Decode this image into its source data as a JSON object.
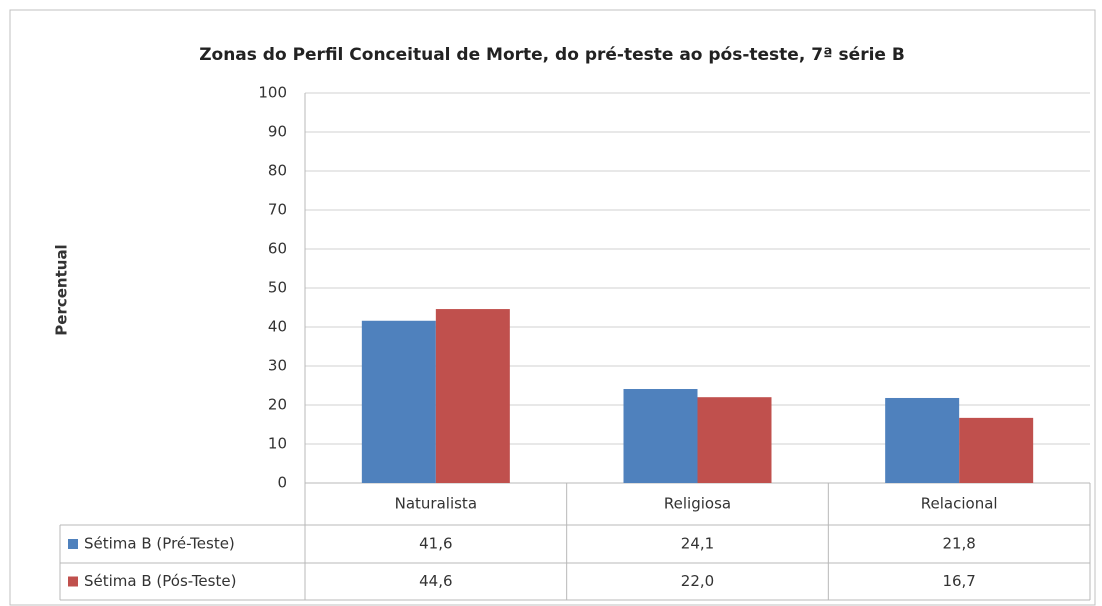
{
  "chart_data": {
    "type": "bar",
    "title": "Zonas do Perfil Conceitual de Morte, do pré-teste ao pós-teste, 7ª série B",
    "y_label": "Percentual",
    "categories": [
      "Naturalista",
      "Religiosa",
      "Relacional"
    ],
    "series": [
      {
        "name": "Sétima B (Pré-Teste)",
        "color": "#4f81bd",
        "values": [
          41.6,
          24.1,
          21.8
        ],
        "value_labels": [
          "41,6",
          "24,1",
          "21,8"
        ]
      },
      {
        "name": "Sétima B (Pós-Teste)",
        "color": "#c0504d",
        "values": [
          44.6,
          22.0,
          16.7
        ],
        "value_labels": [
          "44,6",
          "22,0",
          "16,7"
        ]
      }
    ],
    "ylim": [
      0,
      100
    ],
    "yticks": [
      0,
      10,
      20,
      30,
      40,
      50,
      60,
      70,
      80,
      90,
      100
    ],
    "grid": true
  }
}
